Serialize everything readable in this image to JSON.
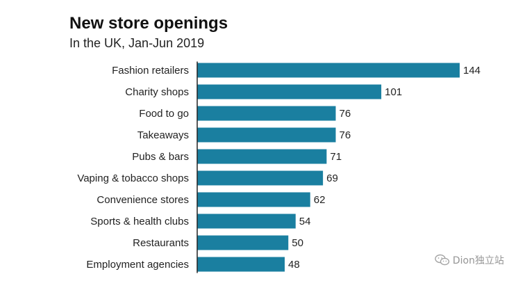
{
  "colors": {
    "bar": "#1a7fa0",
    "axis": "#222222"
  },
  "chart_data": {
    "type": "bar",
    "orientation": "horizontal",
    "title": "New store openings",
    "subtitle": "In the UK, Jan-Jun 2019",
    "categories": [
      "Fashion retailers",
      "Charity shops",
      "Food to go",
      "Takeaways",
      "Pubs & bars",
      "Vaping & tobacco shops",
      "Convenience stores",
      "Sports & health clubs",
      "Restaurants",
      "Employment agencies"
    ],
    "values": [
      144,
      101,
      76,
      76,
      71,
      69,
      62,
      54,
      50,
      48
    ],
    "xlim": [
      0,
      144
    ],
    "grid": false,
    "legend": "none"
  },
  "watermark": {
    "icon": "wechat-icon",
    "text": "Dion独立站"
  }
}
